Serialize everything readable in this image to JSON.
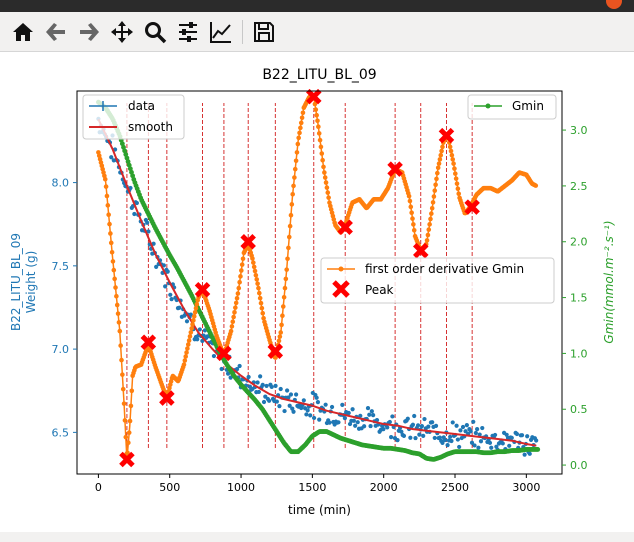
{
  "window": {
    "close_icon": "close-circle-icon"
  },
  "toolbar": {
    "buttons": [
      {
        "name": "home-button",
        "icon": "home-icon"
      },
      {
        "name": "back-button",
        "icon": "arrow-left-icon"
      },
      {
        "name": "forward-button",
        "icon": "arrow-right-icon"
      },
      {
        "name": "pan-button",
        "icon": "move-icon"
      },
      {
        "name": "zoom-button",
        "icon": "magnifier-icon"
      },
      {
        "name": "configure-subplots-button",
        "icon": "sliders-icon"
      },
      {
        "name": "edit-axis-button",
        "icon": "chart-line-icon"
      },
      {
        "name": "save-button",
        "icon": "floppy-disk-icon"
      }
    ]
  },
  "chart_data": {
    "type": "line",
    "title": "B22_LITU_BL_09",
    "xlabel": "time (min)",
    "ylabel_left_line1": "B22_LITU_BL_09",
    "ylabel_left_line2": "Weight (g)",
    "ylabel_right": "Gmin(mmol.m⁻².s⁻¹)",
    "xlim": [
      -150,
      3250
    ],
    "ylim_left": [
      6.25,
      8.55
    ],
    "ylim_right": [
      -0.08,
      3.35
    ],
    "xticks": [
      0,
      500,
      1000,
      1500,
      2000,
      2500,
      3000
    ],
    "yticks_left": [
      6.5,
      7.0,
      7.5,
      8.0
    ],
    "yticks_right": [
      0.0,
      0.5,
      1.0,
      1.5,
      2.0,
      2.5,
      3.0
    ],
    "colors": {
      "data": "#1f77b4",
      "smooth": "#d62728",
      "gmin": "#2ca02c",
      "derivative": "#ff7f0e",
      "peak": "#ff0000",
      "vline": "#cc0000"
    },
    "legend_left": {
      "position": "upper-left",
      "entries": [
        "data",
        "smooth"
      ]
    },
    "legend_right": {
      "position": "upper-right",
      "entries": [
        "Gmin"
      ]
    },
    "legend_middle": {
      "position": "center-right",
      "entries": [
        "first order derivative Gmin",
        "Peak"
      ]
    },
    "smooth": {
      "x": [
        0,
        100,
        200,
        300,
        400,
        500,
        600,
        700,
        800,
        900,
        1000,
        1100,
        1200,
        1300,
        1400,
        1500,
        1600,
        1700,
        1800,
        1900,
        2000,
        2100,
        2200,
        2300,
        2400,
        2500,
        2600,
        2700,
        2800,
        2900,
        3000,
        3070
      ],
      "y": [
        8.38,
        8.2,
        7.98,
        7.77,
        7.57,
        7.4,
        7.24,
        7.1,
        7.0,
        6.91,
        6.84,
        6.78,
        6.73,
        6.7,
        6.68,
        6.66,
        6.63,
        6.61,
        6.59,
        6.57,
        6.55,
        6.54,
        6.52,
        6.51,
        6.5,
        6.49,
        6.48,
        6.47,
        6.46,
        6.45,
        6.43,
        6.42
      ]
    },
    "gmin": {
      "x": [
        0,
        50,
        100,
        150,
        200,
        250,
        300,
        350,
        400,
        450,
        500,
        550,
        600,
        650,
        700,
        750,
        800,
        850,
        900,
        950,
        1000,
        1050,
        1100,
        1150,
        1200,
        1250,
        1300,
        1350,
        1400,
        1450,
        1500,
        1550,
        1600,
        1650,
        1700,
        1750,
        1800,
        1850,
        1900,
        1950,
        2000,
        2050,
        2100,
        2150,
        2200,
        2250,
        2300,
        2350,
        2400,
        2450,
        2500,
        2550,
        2600,
        2650,
        2700,
        2750,
        2800,
        2850,
        2900,
        2950,
        3000,
        3050,
        3080
      ],
      "y": [
        3.25,
        3.2,
        3.1,
        2.95,
        2.75,
        2.55,
        2.38,
        2.25,
        2.12,
        2.0,
        1.88,
        1.77,
        1.65,
        1.53,
        1.4,
        1.27,
        1.14,
        1.01,
        0.9,
        0.8,
        0.72,
        0.65,
        0.58,
        0.5,
        0.4,
        0.3,
        0.2,
        0.12,
        0.12,
        0.18,
        0.26,
        0.3,
        0.3,
        0.27,
        0.24,
        0.22,
        0.2,
        0.18,
        0.17,
        0.16,
        0.15,
        0.15,
        0.14,
        0.13,
        0.11,
        0.1,
        0.06,
        0.05,
        0.07,
        0.1,
        0.12,
        0.12,
        0.12,
        0.12,
        0.11,
        0.11,
        0.12,
        0.12,
        0.13,
        0.13,
        0.14,
        0.14,
        0.14
      ]
    },
    "derivative": {
      "x": [
        0,
        50,
        100,
        150,
        180,
        200,
        220,
        240,
        260,
        300,
        350,
        400,
        450,
        480,
        520,
        560,
        600,
        650,
        700,
        730,
        780,
        830,
        880,
        930,
        980,
        1020,
        1050,
        1080,
        1120,
        1160,
        1200,
        1240,
        1280,
        1320,
        1360,
        1400,
        1440,
        1480,
        1510,
        1540,
        1580,
        1620,
        1660,
        1700,
        1730,
        1780,
        1830,
        1880,
        1930,
        1980,
        2030,
        2080,
        2130,
        2180,
        2220,
        2260,
        2300,
        2340,
        2380,
        2420,
        2450,
        2490,
        2530,
        2570,
        2610,
        2650,
        2700,
        2750,
        2800,
        2850,
        2900,
        2950,
        3000,
        3040,
        3070
      ],
      "y": [
        2.8,
        2.55,
        1.85,
        1.2,
        0.55,
        0.05,
        0.35,
        0.8,
        0.88,
        0.9,
        1.08,
        0.88,
        0.7,
        0.6,
        0.8,
        0.75,
        0.9,
        1.2,
        1.5,
        1.57,
        1.38,
        1.15,
        0.98,
        1.2,
        1.55,
        1.9,
        1.98,
        1.85,
        1.6,
        1.3,
        1.12,
        0.95,
        1.2,
        1.75,
        2.4,
        2.9,
        3.2,
        3.3,
        3.3,
        3.05,
        2.65,
        2.35,
        2.15,
        2.08,
        2.15,
        2.35,
        2.38,
        2.3,
        2.38,
        2.38,
        2.48,
        2.65,
        2.62,
        2.4,
        2.05,
        1.92,
        1.98,
        2.3,
        2.65,
        2.9,
        2.95,
        2.7,
        2.4,
        2.25,
        2.32,
        2.42,
        2.48,
        2.48,
        2.45,
        2.5,
        2.55,
        2.62,
        2.6,
        2.52,
        2.5
      ]
    },
    "peaks": {
      "x": [
        200,
        350,
        480,
        730,
        880,
        1050,
        1240,
        1510,
        1730,
        2080,
        2260,
        2440,
        2620
      ],
      "y": [
        0.05,
        1.1,
        0.6,
        1.57,
        1.0,
        2.0,
        1.02,
        3.3,
        2.13,
        2.65,
        1.92,
        2.95,
        2.31
      ]
    },
    "vlines_x": [
      200,
      350,
      480,
      730,
      880,
      1050,
      1240,
      1510,
      1730,
      2080,
      2260,
      2440,
      2620
    ]
  }
}
